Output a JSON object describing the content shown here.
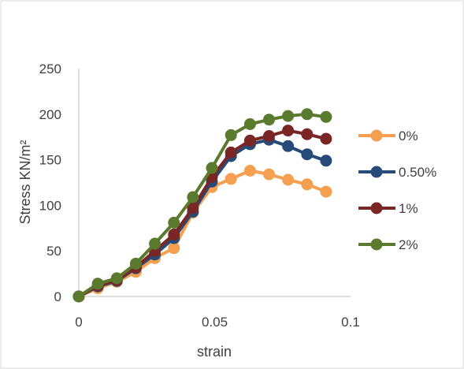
{
  "chart_data": {
    "type": "line",
    "title": "",
    "xlabel": "strain",
    "ylabel": "Stress KN/m²",
    "xlim": [
      0,
      0.1
    ],
    "ylim": [
      0,
      250
    ],
    "x_ticks": [
      "0",
      "0.05",
      "0.1"
    ],
    "y_ticks": [
      "0",
      "50",
      "100",
      "150",
      "200",
      "250"
    ],
    "grid": false,
    "legend_position": "right",
    "series": [
      {
        "name": "0%",
        "color": "#F4A050",
        "x": [
          0,
          0.007,
          0.014,
          0.021,
          0.028,
          0.035,
          0.042,
          0.049,
          0.056,
          0.063,
          0.07,
          0.077,
          0.084,
          0.091
        ],
        "y": [
          0,
          9,
          16,
          27,
          42,
          53,
          92,
          120,
          129,
          138,
          134,
          128,
          123,
          115
        ]
      },
      {
        "name": "0.50%",
        "color": "#264B78",
        "x": [
          0,
          0.007,
          0.014,
          0.021,
          0.028,
          0.035,
          0.042,
          0.049,
          0.056,
          0.063,
          0.07,
          0.077,
          0.084,
          0.091
        ],
        "y": [
          0,
          11,
          17,
          31,
          46,
          64,
          93,
          126,
          154,
          167,
          172,
          165,
          156,
          149
        ]
      },
      {
        "name": "1%",
        "color": "#7A2626",
        "x": [
          0,
          0.007,
          0.014,
          0.021,
          0.028,
          0.035,
          0.042,
          0.049,
          0.056,
          0.063,
          0.07,
          0.077,
          0.084,
          0.091
        ],
        "y": [
          0,
          12,
          18,
          32,
          50,
          68,
          97,
          131,
          158,
          171,
          176,
          182,
          178,
          173
        ]
      },
      {
        "name": "2%",
        "color": "#5A7A2E",
        "x": [
          0,
          0.007,
          0.014,
          0.021,
          0.028,
          0.035,
          0.042,
          0.049,
          0.056,
          0.063,
          0.07,
          0.077,
          0.084,
          0.091
        ],
        "y": [
          0,
          14,
          20,
          36,
          58,
          81,
          109,
          141,
          177,
          189,
          194,
          198,
          200,
          197
        ]
      }
    ]
  }
}
